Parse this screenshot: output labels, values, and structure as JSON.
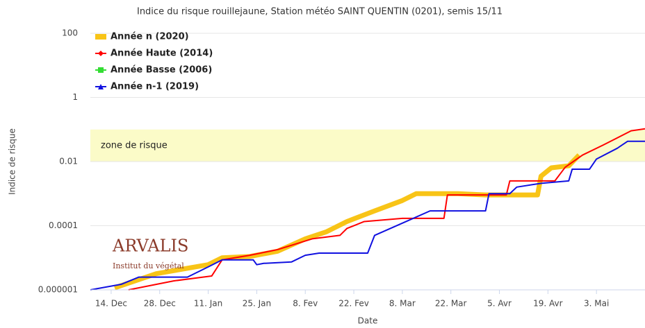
{
  "chart_data": {
    "type": "line",
    "title": "Indice du risque rouillejaune, Station météo SAINT QUENTIN (0201), semis 15/11",
    "xlabel": "Date",
    "ylabel": "Indice de risque",
    "yscale": "log",
    "ylim": [
      1e-06,
      100
    ],
    "yticks": [
      100,
      1,
      0.01,
      0.0001,
      1e-06
    ],
    "xlim": [
      23,
      183
    ],
    "xticks": [
      {
        "value": 29,
        "label": "14. Dec"
      },
      {
        "value": 43,
        "label": "28. Dec"
      },
      {
        "value": 57,
        "label": "11. Jan"
      },
      {
        "value": 71,
        "label": "25. Jan"
      },
      {
        "value": 85,
        "label": "8. Fev"
      },
      {
        "value": 99,
        "label": "22. Fev"
      },
      {
        "value": 113,
        "label": "8. Mar"
      },
      {
        "value": 127,
        "label": "22. Mar"
      },
      {
        "value": 141,
        "label": "5. Avr"
      },
      {
        "value": 155,
        "label": "19. Avr"
      },
      {
        "value": 169,
        "label": "3. Mai"
      }
    ],
    "grid": true,
    "legend": "top-left",
    "zone": {
      "label": "zone de risque",
      "range": [
        0.01,
        0.1
      ],
      "color": "#fbfbc8"
    },
    "logo": {
      "name": "ARVALIS",
      "tagline": "Institut du végétal"
    },
    "series": [
      {
        "name": "Année n (2020)",
        "color": "#f8c417",
        "width": 7,
        "marker": "rect",
        "x": [
          30,
          42,
          57,
          61,
          69,
          77,
          85,
          91,
          97,
          105,
          113,
          117,
          129,
          137,
          152,
          153,
          156,
          161,
          164
        ],
        "values": [
          1.16e-06,
          3.2e-06,
          6.1e-06,
          1e-05,
          1.1e-05,
          1.6e-05,
          3.9e-05,
          6.4e-05,
          0.000135,
          0.00029,
          0.00061,
          0.001,
          0.001,
          0.00091,
          0.00091,
          0.0035,
          0.0064,
          0.0074,
          0.016
        ]
      },
      {
        "name": "Année Haute (2014)",
        "color": "#ff0000",
        "width": 2,
        "marker": "diamond",
        "x": [
          34,
          47,
          58,
          61,
          69,
          77,
          87,
          95,
          97,
          102,
          113,
          125,
          126,
          143,
          144,
          157,
          160,
          165,
          171,
          179,
          183
        ],
        "values": [
          1e-06,
          1.9e-06,
          2.7e-06,
          8.6e-06,
          1.2e-05,
          1.8e-05,
          3.9e-05,
          5e-05,
          8.2e-05,
          0.000135,
          0.00017,
          0.00017,
          0.00091,
          0.00091,
          0.0025,
          0.0025,
          0.0067,
          0.016,
          0.033,
          0.091,
          0.105
        ]
      },
      {
        "name": "Année Basse (2006)",
        "color": "#33dd33",
        "width": 2,
        "marker": "square",
        "x": [],
        "values": []
      },
      {
        "name": "Année n-1 (2019)",
        "color": "#1010e0",
        "width": 2,
        "marker": "triangle",
        "x": [
          23,
          32,
          37,
          51,
          57,
          61,
          70,
          71,
          73,
          81,
          85,
          89,
          103,
          105,
          113,
          121,
          137,
          138,
          144,
          146,
          153,
          161,
          162,
          167,
          169,
          175,
          178,
          183
        ],
        "values": [
          1e-06,
          1.5e-06,
          2.5e-06,
          2.5e-06,
          5.2e-06,
          8.6e-06,
          8.6e-06,
          6.1e-06,
          6.7e-06,
          7.4e-06,
          1.2e-05,
          1.4e-05,
          1.4e-05,
          5e-05,
          0.00012,
          0.00029,
          0.00029,
          0.001,
          0.001,
          0.0016,
          0.0021,
          0.0025,
          0.0058,
          0.0058,
          0.012,
          0.026,
          0.043,
          0.043
        ]
      }
    ]
  }
}
